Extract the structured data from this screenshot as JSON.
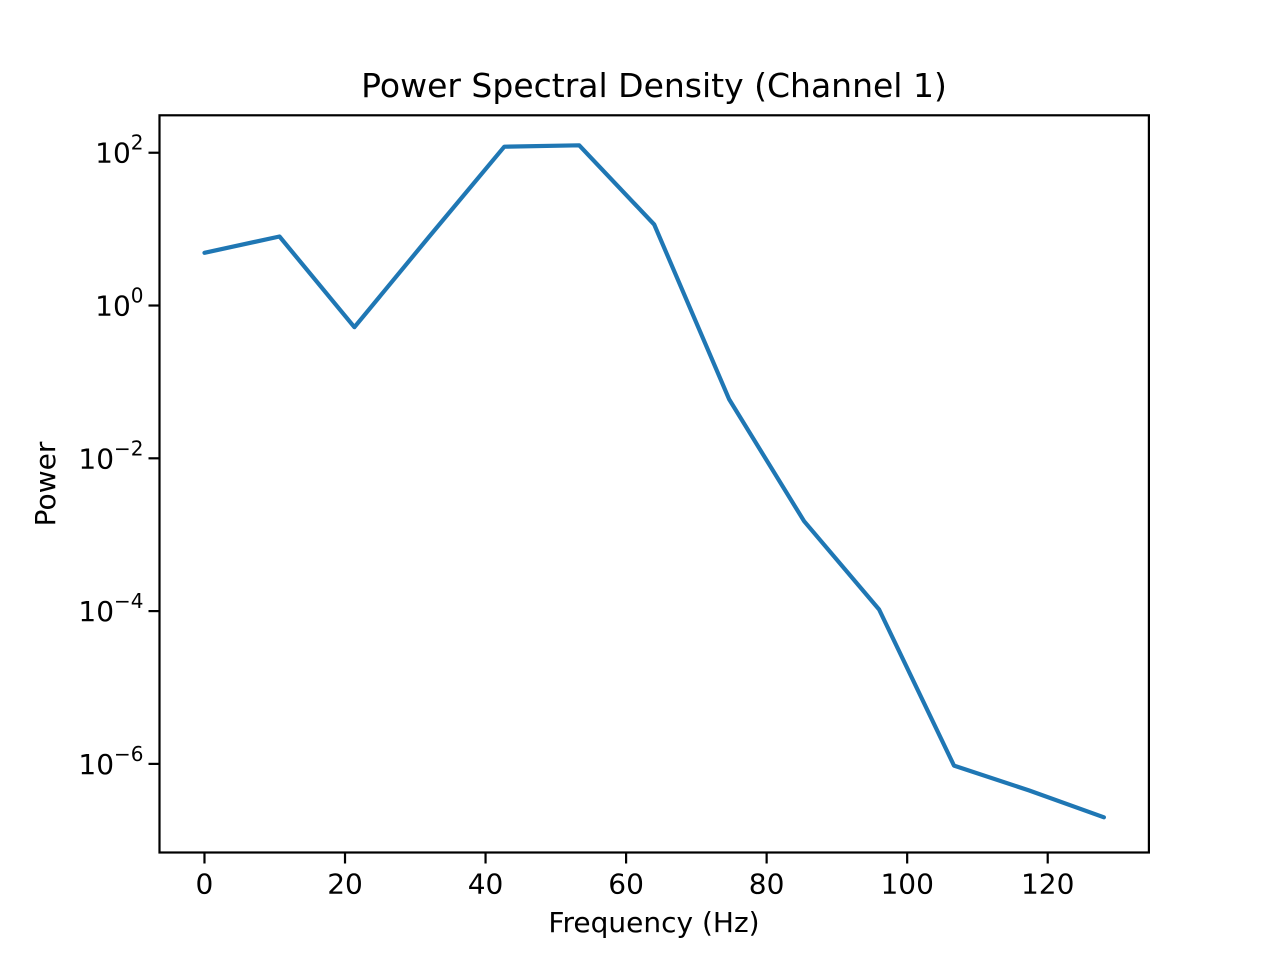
{
  "figure": {
    "background_color": "#ffffff",
    "text_color": "#000000"
  },
  "chart_data": {
    "type": "line",
    "title": "Power Spectral Density (Channel 1)",
    "xlabel": "Frequency (Hz)",
    "ylabel": "Power",
    "y_scale": "log",
    "grid": false,
    "legend": "none",
    "line_color": "#1f77b4",
    "x": [
      0,
      10.67,
      21.33,
      32,
      42.67,
      53.33,
      64,
      74.67,
      85.33,
      96,
      106.67,
      117.33,
      128
    ],
    "y": [
      4.9,
      8.0,
      0.52,
      8.0,
      120,
      125,
      11.5,
      0.059,
      0.0015,
      0.000105,
      9.5e-07,
      4.5e-07,
      2e-07
    ],
    "xlim": [
      -6.4,
      134.4
    ],
    "ylim_log10": [
      -7.16,
      2.49
    ],
    "x_ticks": [
      0,
      20,
      40,
      60,
      80,
      100,
      120
    ],
    "y_ticks": [
      {
        "base": "10",
        "exponent": "2"
      },
      {
        "base": "10",
        "exponent": "0"
      },
      {
        "base": "10",
        "exponent": "−2"
      },
      {
        "base": "10",
        "exponent": "−4"
      },
      {
        "base": "10",
        "exponent": "−6"
      }
    ],
    "y_tick_log10_values": [
      2,
      0,
      -2,
      -4,
      -6
    ]
  }
}
